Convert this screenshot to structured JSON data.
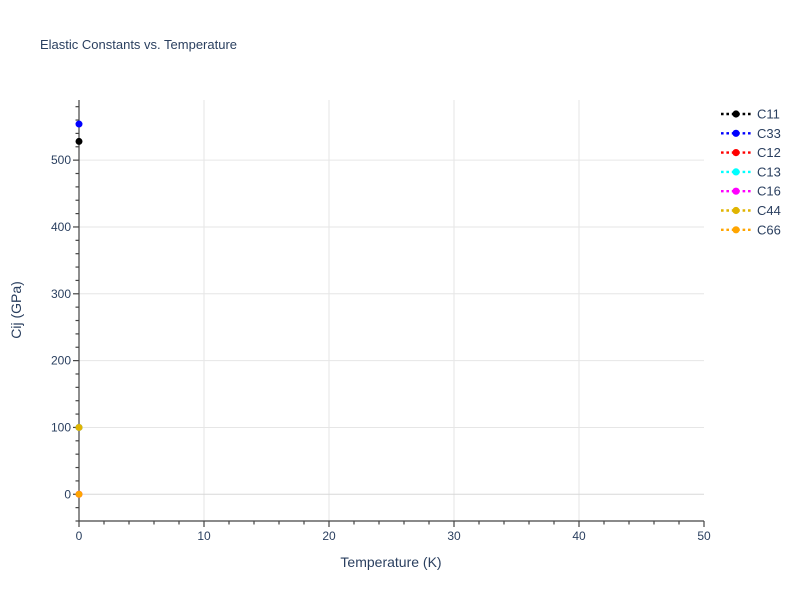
{
  "window": {
    "background": "#ffffff"
  },
  "chart_data": {
    "type": "scatter",
    "title": "Elastic Constants vs. Temperature",
    "xlabel": "Temperature (K)",
    "ylabel": "Cij (GPa)",
    "x_range": [
      0,
      50
    ],
    "y_range": [
      -40,
      590
    ],
    "x_major_ticks": [
      0,
      10,
      20,
      30,
      40,
      50
    ],
    "x_minor_tick_step": 2,
    "y_major_ticks": [
      0,
      100,
      200,
      300,
      400,
      500
    ],
    "y_minor_tick_step": 20,
    "grid": true,
    "legend_position": "top-right-outside",
    "series": [
      {
        "name": "C11",
        "color": "#000000",
        "x": [
          0
        ],
        "y": [
          528
        ]
      },
      {
        "name": "C33",
        "color": "#0000ff",
        "x": [
          0
        ],
        "y": [
          554
        ]
      },
      {
        "name": "C12",
        "color": "#ff0000",
        "x": [
          0
        ],
        "y": [
          100
        ],
        "note": "marker hidden beneath C44 marker"
      },
      {
        "name": "C13",
        "color": "#00ffff",
        "x": [
          0
        ],
        "y": [
          100
        ],
        "note": "marker hidden beneath C44 marker"
      },
      {
        "name": "C16",
        "color": "#ff00ff",
        "x": [
          0
        ],
        "y": [
          0
        ],
        "note": "marker hidden beneath C66 marker"
      },
      {
        "name": "C44",
        "color": "#e0b400",
        "x": [
          0
        ],
        "y": [
          100
        ]
      },
      {
        "name": "C66",
        "color": "#ffa500",
        "x": [
          0
        ],
        "y": [
          0
        ]
      }
    ],
    "colors": {
      "text": "#2a3f5f",
      "axis": "#444444",
      "grid": "#e6e6e6",
      "zeroline": "#d8d8d8"
    }
  }
}
